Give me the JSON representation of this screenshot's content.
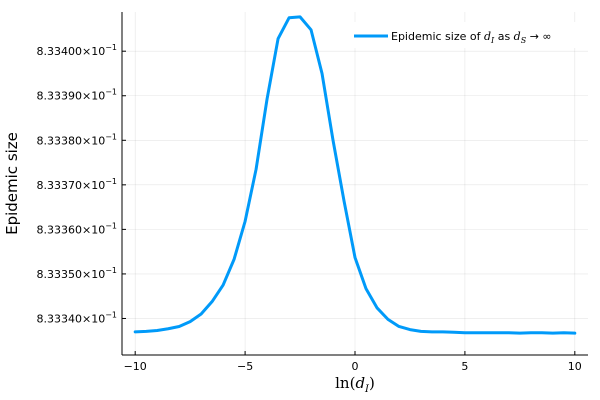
{
  "chart_data": {
    "type": "line",
    "title": "",
    "xlabel": "ln(d_I)",
    "xlabel_parts": {
      "prefix": "ln(",
      "var": "d",
      "sub": "I",
      "suffix": ")"
    },
    "ylabel": "Epidemic size",
    "xlim": [
      -10.6,
      10.6
    ],
    "ylim": [
      0.8333318,
      0.8334088
    ],
    "xticks": [
      -10,
      -5,
      0,
      5,
      10
    ],
    "xtick_labels": [
      "−10",
      "−5",
      "0",
      "5",
      "10"
    ],
    "yticks": [
      0.83334,
      0.83335,
      0.83336,
      0.83337,
      0.83338,
      0.83339,
      0.8334
    ],
    "ytick_labels": [
      "8.33340×10",
      "8.33350×10",
      "8.33360×10",
      "8.33370×10",
      "8.33380×10",
      "8.33390×10",
      "8.33400×10"
    ],
    "ytick_exponent": "−1",
    "grid": true,
    "legend_position": "top-right",
    "series": [
      {
        "name": "Epidemic size of d_I as d_S → ∞",
        "name_parts": {
          "prefix": "Epidemic size of ",
          "var1": "d",
          "sub1": "I",
          "middle": " as ",
          "var2": "d",
          "sub2": "S",
          "suffix": " → ∞"
        },
        "color": "#009af9",
        "x": [
          -10,
          -9.5,
          -9,
          -8.5,
          -8,
          -7.5,
          -7,
          -6.5,
          -6,
          -5.5,
          -5,
          -4.5,
          -4,
          -3.5,
          -3,
          -2.5,
          -2,
          -1.5,
          -1,
          -0.5,
          0,
          0.5,
          1,
          1.5,
          2,
          2.5,
          3,
          3.5,
          4,
          4.5,
          5,
          5.5,
          6,
          6.5,
          7,
          7.5,
          8,
          8.5,
          9,
          9.5,
          10
        ],
        "y": [
          0.833337,
          0.8333371,
          0.8333373,
          0.8333377,
          0.8333382,
          0.8333393,
          0.833341,
          0.8333438,
          0.8333475,
          0.8333533,
          0.8333618,
          0.8333735,
          0.8333893,
          0.8334028,
          0.8334075,
          0.8334077,
          0.8334048,
          0.833395,
          0.83338,
          0.8333664,
          0.8333537,
          0.8333467,
          0.8333424,
          0.8333398,
          0.8333382,
          0.8333375,
          0.8333371,
          0.833337,
          0.833337,
          0.8333369,
          0.8333368,
          0.8333368,
          0.8333368,
          0.8333368,
          0.8333368,
          0.8333367,
          0.8333368,
          0.8333368,
          0.8333367,
          0.8333368,
          0.8333367
        ]
      }
    ]
  }
}
